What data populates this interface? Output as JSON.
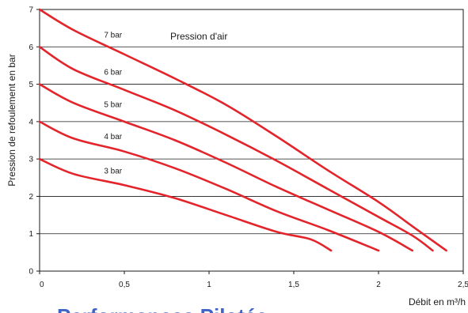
{
  "chart_data": {
    "type": "line",
    "xlabel": "Débit en m³/h",
    "ylabel": "Pression de refoulement en bar",
    "legend_title": "Pression d'air",
    "xlim": [
      0,
      2.5
    ],
    "ylim": [
      0,
      7
    ],
    "x_ticks": [
      "0",
      "0,5",
      "1",
      "1,5",
      "2",
      "2,5"
    ],
    "y_ticks": [
      "0",
      "1",
      "2",
      "3",
      "4",
      "5",
      "6",
      "7"
    ],
    "grid": "horizontal",
    "line_color": "#e3242b",
    "series": [
      {
        "name": "7 bar",
        "points": [
          [
            0,
            7
          ],
          [
            0.2,
            6.45
          ],
          [
            0.5,
            5.8
          ],
          [
            0.8,
            5.15
          ],
          [
            1.1,
            4.45
          ],
          [
            1.4,
            3.6
          ],
          [
            1.7,
            2.7
          ],
          [
            2.0,
            1.85
          ],
          [
            2.2,
            1.2
          ],
          [
            2.4,
            0.55
          ]
        ]
      },
      {
        "name": "6 bar",
        "points": [
          [
            0,
            6
          ],
          [
            0.2,
            5.4
          ],
          [
            0.5,
            4.85
          ],
          [
            0.8,
            4.3
          ],
          [
            1.1,
            3.65
          ],
          [
            1.4,
            2.95
          ],
          [
            1.7,
            2.2
          ],
          [
            2.0,
            1.45
          ],
          [
            2.2,
            0.95
          ],
          [
            2.32,
            0.55
          ]
        ]
      },
      {
        "name": "5 bar",
        "points": [
          [
            0,
            5
          ],
          [
            0.2,
            4.5
          ],
          [
            0.5,
            4.0
          ],
          [
            0.8,
            3.5
          ],
          [
            1.1,
            2.9
          ],
          [
            1.4,
            2.25
          ],
          [
            1.7,
            1.65
          ],
          [
            2.0,
            1.05
          ],
          [
            2.2,
            0.55
          ]
        ]
      },
      {
        "name": "4 bar",
        "points": [
          [
            0,
            4
          ],
          [
            0.2,
            3.55
          ],
          [
            0.5,
            3.2
          ],
          [
            0.8,
            2.75
          ],
          [
            1.1,
            2.2
          ],
          [
            1.4,
            1.6
          ],
          [
            1.7,
            1.1
          ],
          [
            2.0,
            0.55
          ]
        ]
      },
      {
        "name": "3 bar",
        "points": [
          [
            0,
            3
          ],
          [
            0.2,
            2.6
          ],
          [
            0.5,
            2.3
          ],
          [
            0.8,
            1.95
          ],
          [
            1.1,
            1.5
          ],
          [
            1.4,
            1.05
          ],
          [
            1.6,
            0.85
          ],
          [
            1.72,
            0.55
          ]
        ]
      }
    ],
    "footer_title": "Performances Pilotée"
  }
}
